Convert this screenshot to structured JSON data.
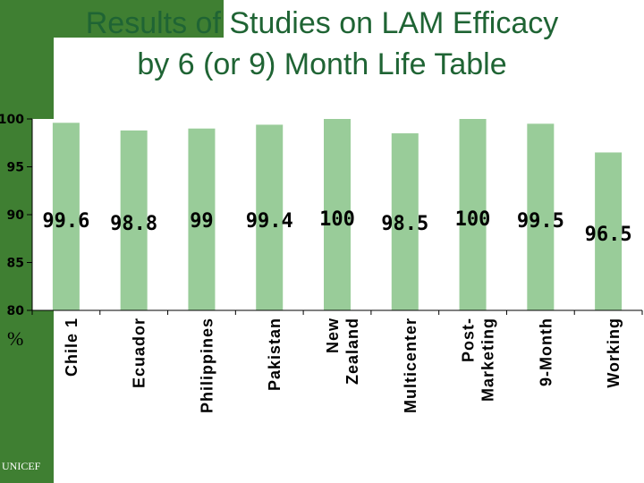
{
  "slide": {
    "title_line1": "Results of Studies on LAM Efficacy",
    "title_line2": "by 6 (or 9) Month Life Table",
    "unit_label": "%",
    "source": "UNICEF",
    "title_color": "#1f6434",
    "accent_color": "#3f7f32"
  },
  "chart_data": {
    "type": "bar",
    "categories": [
      "Chile 1",
      "Ecuador",
      "Philippines",
      "Pakistan",
      "New Zealand",
      "Multicenter",
      "Post-Marketing",
      "9-Month",
      "Working"
    ],
    "category_label_lines": [
      [
        "Chile 1"
      ],
      [
        "Ecuador"
      ],
      [
        "Philippines"
      ],
      [
        "Pakistan"
      ],
      [
        "New",
        "Zealand"
      ],
      [
        "Multicenter"
      ],
      [
        "Post-",
        "Marketing"
      ],
      [
        "9-Month"
      ],
      [
        "Working"
      ]
    ],
    "values": [
      99.6,
      98.8,
      99,
      99.4,
      100,
      98.5,
      100,
      99.5,
      96.5
    ],
    "data_labels": [
      "99.6",
      "98.8",
      "99",
      "99.4",
      "100",
      "98.5",
      "100",
      "99.5",
      "96.5"
    ],
    "yticks": [
      "80",
      "85",
      "90",
      "95",
      "100"
    ],
    "ylim": [
      80,
      100
    ],
    "bar_color": "#99cc99",
    "grid": false
  }
}
